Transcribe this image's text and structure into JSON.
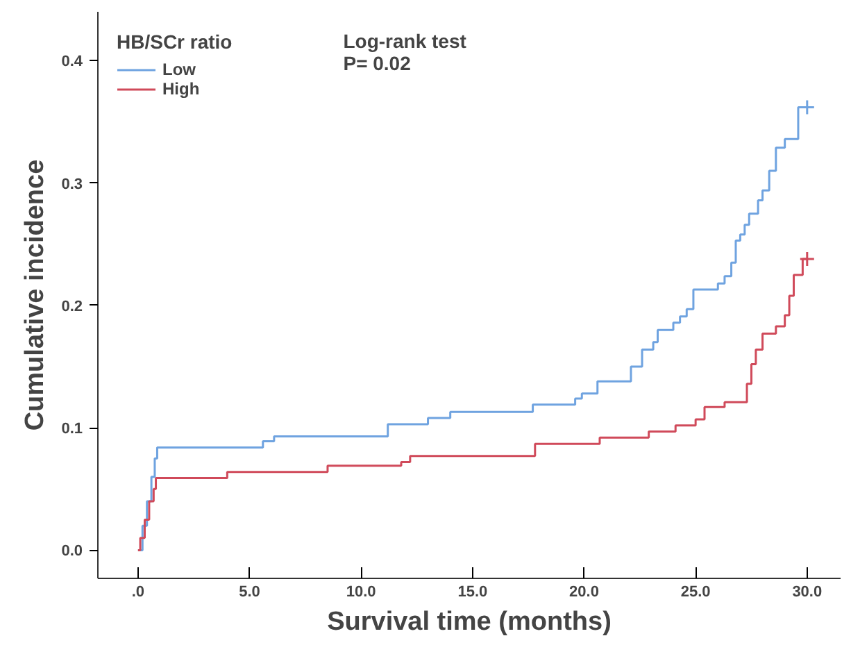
{
  "chart_data": {
    "type": "step",
    "xlabel": "Survival time (months)",
    "ylabel": "Cumulative incidence",
    "legend_title": "HB/SCr ratio",
    "legend": "top left",
    "grid": false,
    "line_style": "solid",
    "xlim": [
      -1.8,
      31.5
    ],
    "ylim": [
      -0.023,
      0.44
    ],
    "xticks": [
      {
        "value": 0,
        "label": ".0"
      },
      {
        "value": 5,
        "label": "5.0"
      },
      {
        "value": 10,
        "label": "10.0"
      },
      {
        "value": 15,
        "label": "15.0"
      },
      {
        "value": 20,
        "label": "20.0"
      },
      {
        "value": 25,
        "label": "25.0"
      },
      {
        "value": 30,
        "label": "30.0"
      }
    ],
    "yticks": [
      {
        "value": 0,
        "label": "0.0"
      },
      {
        "value": 0.1,
        "label": "0.1"
      },
      {
        "value": 0.2,
        "label": "0.2"
      },
      {
        "value": 0.3,
        "label": "0.3"
      },
      {
        "value": 0.4,
        "label": "0.4"
      }
    ],
    "annotations": [
      "Log-rank test",
      "P= 0.02"
    ],
    "series": [
      {
        "name": "Low",
        "color": "#6fa3e0",
        "x": [
          0,
          0.2,
          0.4,
          0.6,
          0.75,
          0.86,
          5.6,
          6.1,
          11.2,
          13.0,
          14.0,
          17.7,
          19.6,
          19.9,
          20.6,
          22.1,
          22.6,
          23.1,
          23.3,
          24.0,
          24.3,
          24.6,
          24.9,
          26.0,
          26.3,
          26.6,
          26.8,
          27.0,
          27.2,
          27.4,
          27.8,
          28.0,
          28.3,
          28.6,
          29.0,
          29.6,
          30
        ],
        "values": [
          0,
          0.02,
          0.04,
          0.06,
          0.075,
          0.084,
          0.089,
          0.093,
          0.103,
          0.108,
          0.113,
          0.119,
          0.124,
          0.128,
          0.138,
          0.15,
          0.164,
          0.17,
          0.18,
          0.186,
          0.191,
          0.197,
          0.213,
          0.218,
          0.224,
          0.235,
          0.253,
          0.258,
          0.266,
          0.275,
          0.286,
          0.294,
          0.31,
          0.329,
          0.336,
          0.362,
          0.362
        ]
      },
      {
        "name": "High",
        "color": "#d04a5a",
        "x": [
          0,
          0.1,
          0.3,
          0.5,
          0.7,
          0.8,
          4.0,
          8.5,
          11.8,
          12.2,
          17.8,
          20.7,
          22.9,
          24.1,
          25.0,
          25.4,
          26.3,
          27.3,
          27.5,
          27.7,
          28.0,
          28.6,
          29.0,
          29.2,
          29.4,
          29.8,
          30
        ],
        "values": [
          0,
          0.01,
          0.025,
          0.04,
          0.05,
          0.059,
          0.064,
          0.069,
          0.072,
          0.077,
          0.087,
          0.092,
          0.097,
          0.102,
          0.107,
          0.117,
          0.121,
          0.136,
          0.152,
          0.164,
          0.177,
          0.183,
          0.192,
          0.208,
          0.225,
          0.238,
          0.238
        ]
      },
      {
        "type": "scatter",
        "marker": "cross",
        "color": "#6fa3e0",
        "x": [
          30
        ],
        "values": [
          0.362
        ]
      },
      {
        "type": "scatter",
        "marker": "cross",
        "color": "#d04a5a",
        "x": [
          30
        ],
        "values": [
          0.238
        ]
      }
    ]
  }
}
